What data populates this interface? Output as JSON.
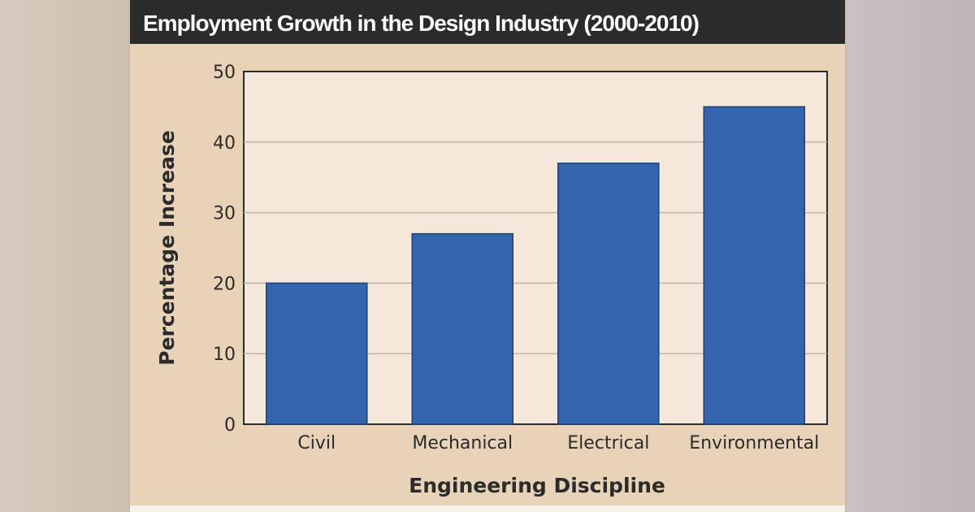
{
  "chart_data": {
    "type": "bar",
    "title": "Employment Growth in the Design Industry (2000-2010)",
    "xlabel": "Engineering Discipline",
    "ylabel": "Percentage Increase",
    "categories": [
      "Civil",
      "Mechanical",
      "Electrical",
      "Environmental"
    ],
    "values": [
      20,
      27,
      37,
      45
    ],
    "ylim": [
      0,
      50
    ],
    "yticks": [
      "0",
      "10",
      "20",
      "30",
      "40",
      "50"
    ],
    "grid": true,
    "legend": "none"
  },
  "colors": {
    "bar": "#3464ad",
    "plot_background": "#f4e8da",
    "panel": "#e8d3b8",
    "title_bar": "#2b2b2b"
  }
}
